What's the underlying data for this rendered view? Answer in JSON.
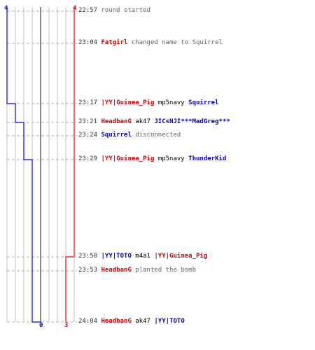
{
  "colors": {
    "team_blue": "#0000ff",
    "team_red": "#ff0000",
    "grid": "#c0c0c0",
    "center_line": "#606060",
    "dashed": "#b0b0b0"
  },
  "scores": {
    "blue_start": "4",
    "red_start": "4",
    "blue_end": "0",
    "red_end": "3"
  },
  "events": [
    {
      "time": "22:57",
      "parts": [
        {
          "text": " round started",
          "cls": "txt"
        }
      ]
    },
    {
      "time": "23:04",
      "parts": [
        {
          "text": " Fatgirl",
          "cls": "red"
        },
        {
          "text": " changed name to Squirrel",
          "cls": "txt"
        }
      ]
    },
    {
      "time": "23:17",
      "parts": [
        {
          "text": " |YY|Guinea_Pig",
          "cls": "red"
        },
        {
          "text": " mp5navy ",
          "cls": "wpn"
        },
        {
          "text": "Squirrel",
          "cls": "blue"
        }
      ]
    },
    {
      "time": "23:21",
      "parts": [
        {
          "text": " HeadbanG",
          "cls": "red"
        },
        {
          "text": " ak47 ",
          "cls": "wpn"
        },
        {
          "text": "JICsNJI***MadGreg***",
          "cls": "blue"
        }
      ]
    },
    {
      "time": "23:24",
      "parts": [
        {
          "text": " Squirrel",
          "cls": "blue"
        },
        {
          "text": " disconnected",
          "cls": "txt"
        }
      ]
    },
    {
      "time": "23:29",
      "parts": [
        {
          "text": " |YY|Guinea_Pig",
          "cls": "red"
        },
        {
          "text": " mp5navy ",
          "cls": "wpn"
        },
        {
          "text": "ThunderKid",
          "cls": "blue"
        }
      ]
    },
    {
      "time": "23:50",
      "parts": [
        {
          "text": " |YY|TOTO",
          "cls": "blue"
        },
        {
          "text": " m4a1 ",
          "cls": "wpn"
        },
        {
          "text": "|YY|Guinea_Pig",
          "cls": "red"
        }
      ]
    },
    {
      "time": "23:53",
      "parts": [
        {
          "text": " HeadbanG",
          "cls": "red"
        },
        {
          "text": " planted the bomb",
          "cls": "txt"
        }
      ]
    },
    {
      "time": "24:04",
      "parts": [
        {
          "text": " HeadbanG",
          "cls": "red"
        },
        {
          "text": " ak47 ",
          "cls": "wpn"
        },
        {
          "text": "|YY|TOTO",
          "cls": "blue"
        }
      ]
    }
  ]
}
